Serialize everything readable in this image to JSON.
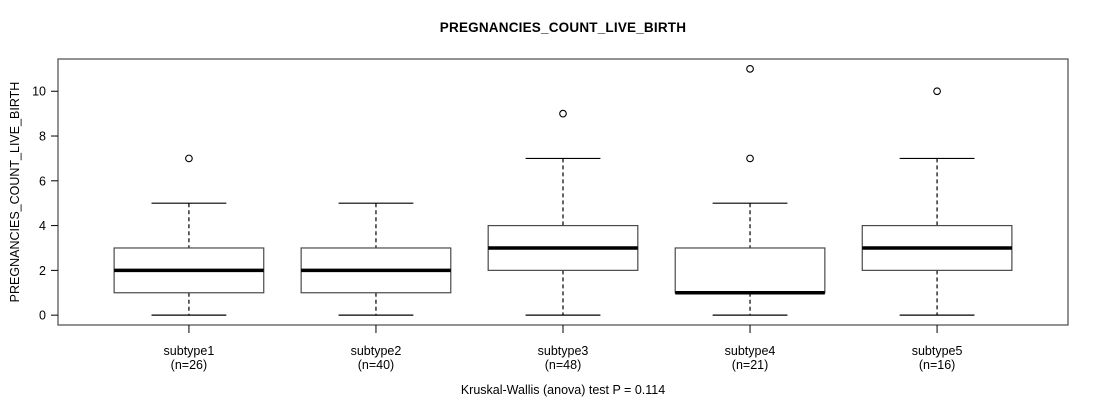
{
  "chart_data": {
    "type": "boxplot",
    "title": "PREGNANCIES_COUNT_LIVE_BIRTH",
    "ylabel": "PREGNANCIES_COUNT_LIVE_BIRTH",
    "xlabel": "",
    "footnote": "Kruskal-Wallis (anova) test P = 0.114",
    "ylim": [
      0,
      11
    ],
    "y_ticks": [
      0,
      2,
      4,
      6,
      8,
      10
    ],
    "grid": "off",
    "boxes": [
      {
        "label": "subtype1",
        "sublabel": "(n=26)",
        "n": 26,
        "whisker_low": 0,
        "q1": 1,
        "median": 2,
        "q3": 3,
        "whisker_high": 5,
        "outliers": [
          7
        ]
      },
      {
        "label": "subtype2",
        "sublabel": "(n=40)",
        "n": 40,
        "whisker_low": 0,
        "q1": 1,
        "median": 2,
        "q3": 3,
        "whisker_high": 5,
        "outliers": []
      },
      {
        "label": "subtype3",
        "sublabel": "(n=48)",
        "n": 48,
        "whisker_low": 0,
        "q1": 2,
        "median": 3,
        "q3": 4,
        "whisker_high": 7,
        "outliers": [
          9
        ]
      },
      {
        "label": "subtype4",
        "sublabel": "(n=21)",
        "n": 21,
        "whisker_low": 0,
        "q1": 1,
        "median": 1,
        "q3": 3,
        "whisker_high": 5,
        "outliers": [
          7,
          11
        ]
      },
      {
        "label": "subtype5",
        "sublabel": "(n=16)",
        "n": 16,
        "whisker_low": 0,
        "q1": 2,
        "median": 3,
        "q3": 4,
        "whisker_high": 7,
        "outliers": [
          10
        ]
      }
    ],
    "colors": {
      "stroke": "#000000",
      "box_border": "#4a4a4a",
      "box_fill": "#ffffff",
      "background": "#ffffff"
    }
  }
}
